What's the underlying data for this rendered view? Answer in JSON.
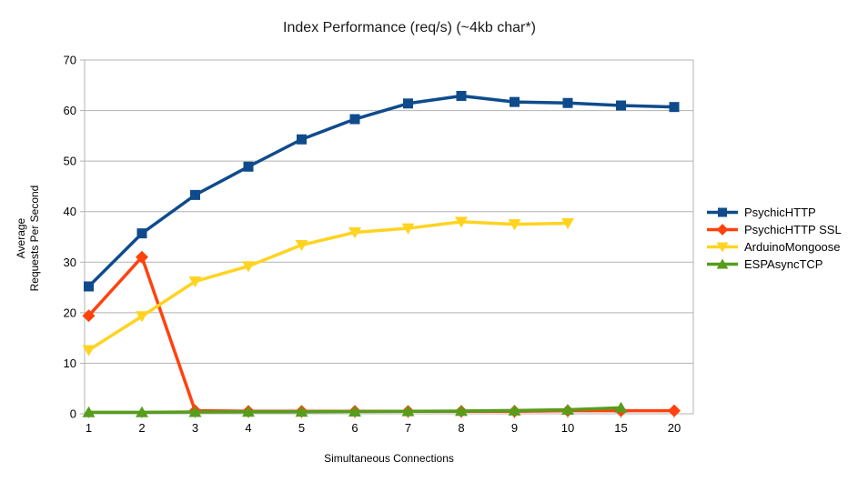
{
  "chart_data": {
    "type": "line",
    "title": "Index Performance (req/s) (~4kb char*)",
    "xlabel": "Simultaneous Connections",
    "ylabel": "Average Requests Per Second",
    "ylabel_lines": [
      "Average",
      "Requests Per Second"
    ],
    "categories": [
      "1",
      "2",
      "3",
      "4",
      "5",
      "6",
      "7",
      "8",
      "9",
      "10",
      "15",
      "20"
    ],
    "ylim": [
      0,
      70
    ],
    "yticks": [
      0,
      10,
      20,
      30,
      40,
      50,
      60,
      70
    ],
    "grid": true,
    "legend_position": "right",
    "axis_color": "#b3b3b3",
    "text_color": "#000000",
    "series": [
      {
        "name": "PsychicHTTP",
        "color": "#0F4B8C",
        "marker": "square",
        "values": [
          25.2,
          35.7,
          43.3,
          48.9,
          54.3,
          58.3,
          61.4,
          62.9,
          61.7,
          61.5,
          61.0,
          60.7
        ]
      },
      {
        "name": "PsychicHTTP SSL",
        "color": "#FF420E",
        "marker": "diamond",
        "values": [
          19.4,
          31.0,
          0.6,
          0.5,
          0.5,
          0.5,
          0.5,
          0.5,
          0.5,
          0.6,
          0.6,
          0.6
        ]
      },
      {
        "name": "ArduinoMongoose",
        "color": "#FFD320",
        "marker": "triangle-down",
        "values": [
          12.6,
          19.3,
          26.2,
          29.2,
          33.4,
          35.9,
          36.7,
          38.0,
          37.5,
          37.7,
          null,
          null
        ]
      },
      {
        "name": "ESPAsyncTCP",
        "color": "#579D1C",
        "marker": "triangle-up",
        "values": [
          0.3,
          0.3,
          0.35,
          0.4,
          0.4,
          0.45,
          0.5,
          0.55,
          0.65,
          0.8,
          1.2,
          null
        ]
      }
    ]
  }
}
